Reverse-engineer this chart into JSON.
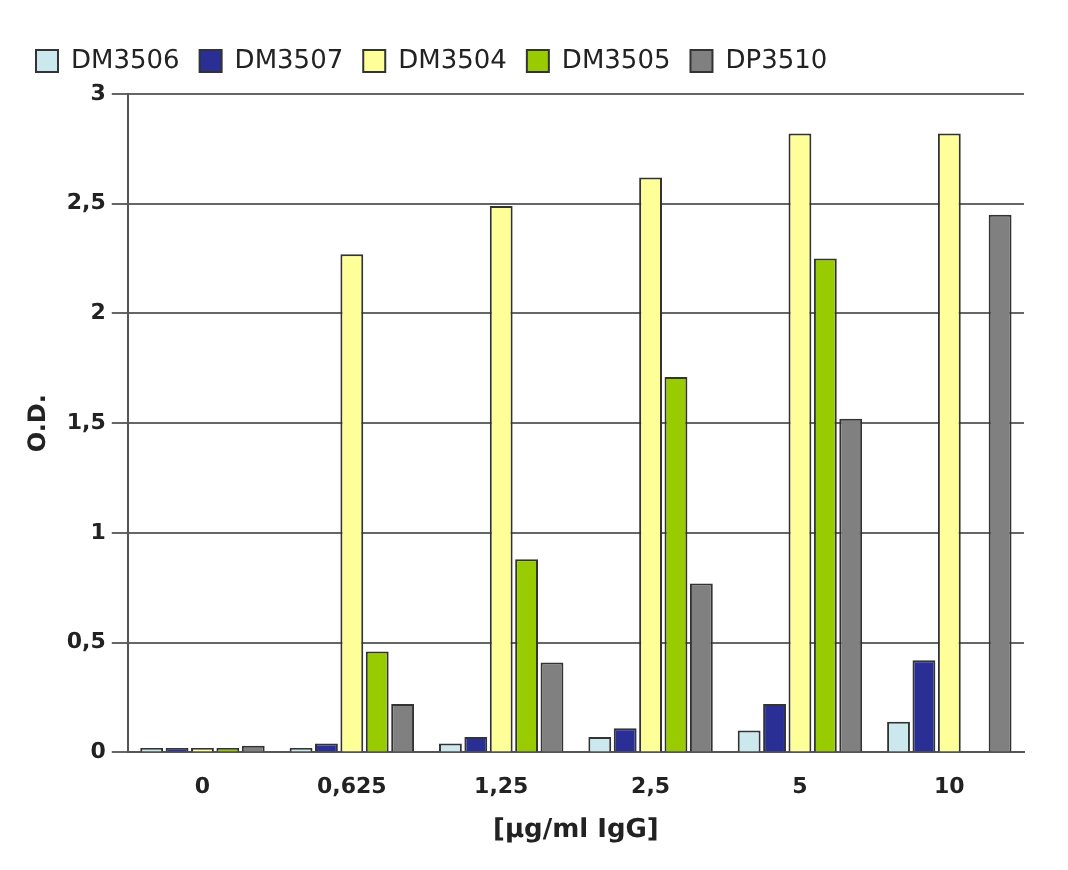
{
  "chart_data": {
    "type": "bar",
    "xlabel": "[µg/ml IgG]",
    "ylabel": "O.D.",
    "categories": [
      "0",
      "0,625",
      "1,25",
      "2,5",
      "5",
      "10"
    ],
    "series": [
      {
        "name": "DM3506",
        "color": "#cce8ef",
        "values": [
          0.02,
          0.02,
          0.04,
          0.07,
          0.1,
          0.14
        ]
      },
      {
        "name": "DM3507",
        "color": "#2a2f96",
        "values": [
          0.02,
          0.04,
          0.07,
          0.11,
          0.22,
          0.42
        ]
      },
      {
        "name": "DM3504",
        "color": "#ffff99",
        "values": [
          0.02,
          2.27,
          2.49,
          2.62,
          2.82,
          2.82
        ]
      },
      {
        "name": "DM3505",
        "color": "#99cc00",
        "values": [
          0.02,
          0.46,
          0.88,
          1.71,
          2.25,
          0
        ]
      },
      {
        "name": "DP3510",
        "color": "#808080",
        "values": [
          0.03,
          0.22,
          0.41,
          0.77,
          1.52,
          2.45
        ]
      }
    ],
    "ylim": [
      0,
      3
    ],
    "yticks": [
      0,
      {
        "value": 0.5,
        "label": "0,5"
      },
      1,
      {
        "value": 1.5,
        "label": "1,5"
      },
      2,
      {
        "value": 2.5,
        "label": "2,5"
      },
      3
    ],
    "grid": "y",
    "legend": "top left"
  }
}
